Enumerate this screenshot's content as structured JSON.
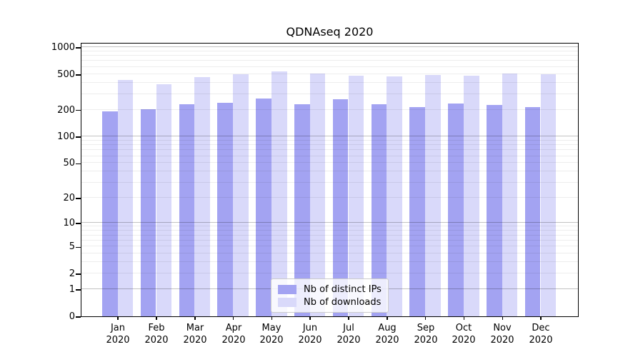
{
  "chart_data": {
    "type": "bar",
    "title": "QDNAseq 2020",
    "year_label": "2020",
    "categories": [
      "Jan",
      "Feb",
      "Mar",
      "Apr",
      "May",
      "Jun",
      "Jul",
      "Aug",
      "Sep",
      "Oct",
      "Nov",
      "Dec"
    ],
    "series": [
      {
        "name": "Nb of distinct IPs",
        "color": "#a3a3f2",
        "values": [
          193,
          204,
          231,
          240,
          269,
          230,
          262,
          229,
          214,
          235,
          226,
          212
        ]
      },
      {
        "name": "Nb of downloads",
        "color": "#d9d9fa",
        "values": [
          431,
          382,
          462,
          500,
          538,
          504,
          477,
          468,
          486,
          482,
          507,
          500
        ]
      }
    ],
    "y_axis": {
      "scale": "log1p",
      "tick_labels": [
        "1000",
        "500",
        "200",
        "100",
        "50",
        "20",
        "10",
        "5",
        "2",
        "1",
        "0"
      ],
      "tick_values": [
        1000,
        500,
        200,
        100,
        50,
        20,
        10,
        5,
        2,
        1,
        0
      ],
      "ylim": [
        0,
        1000
      ]
    },
    "x_axis": {
      "tick_label_line2": "2020"
    },
    "grid": {
      "horizontal": true,
      "minor_log_lines": true,
      "decade_lines_darker": true
    },
    "legend": {
      "position": "inside-bottom-center",
      "entries": [
        "Nb of distinct IPs",
        "Nb of downloads"
      ]
    }
  },
  "colors": {
    "frame": "#000000",
    "grid_minor": "rgba(0,0,0,0.07)",
    "grid_decade": "rgba(0,0,0,0.24)",
    "bar_distinct_ips": "#a3a3f2",
    "bar_downloads": "#d9d9fa",
    "legend_border": "#cccccc"
  }
}
